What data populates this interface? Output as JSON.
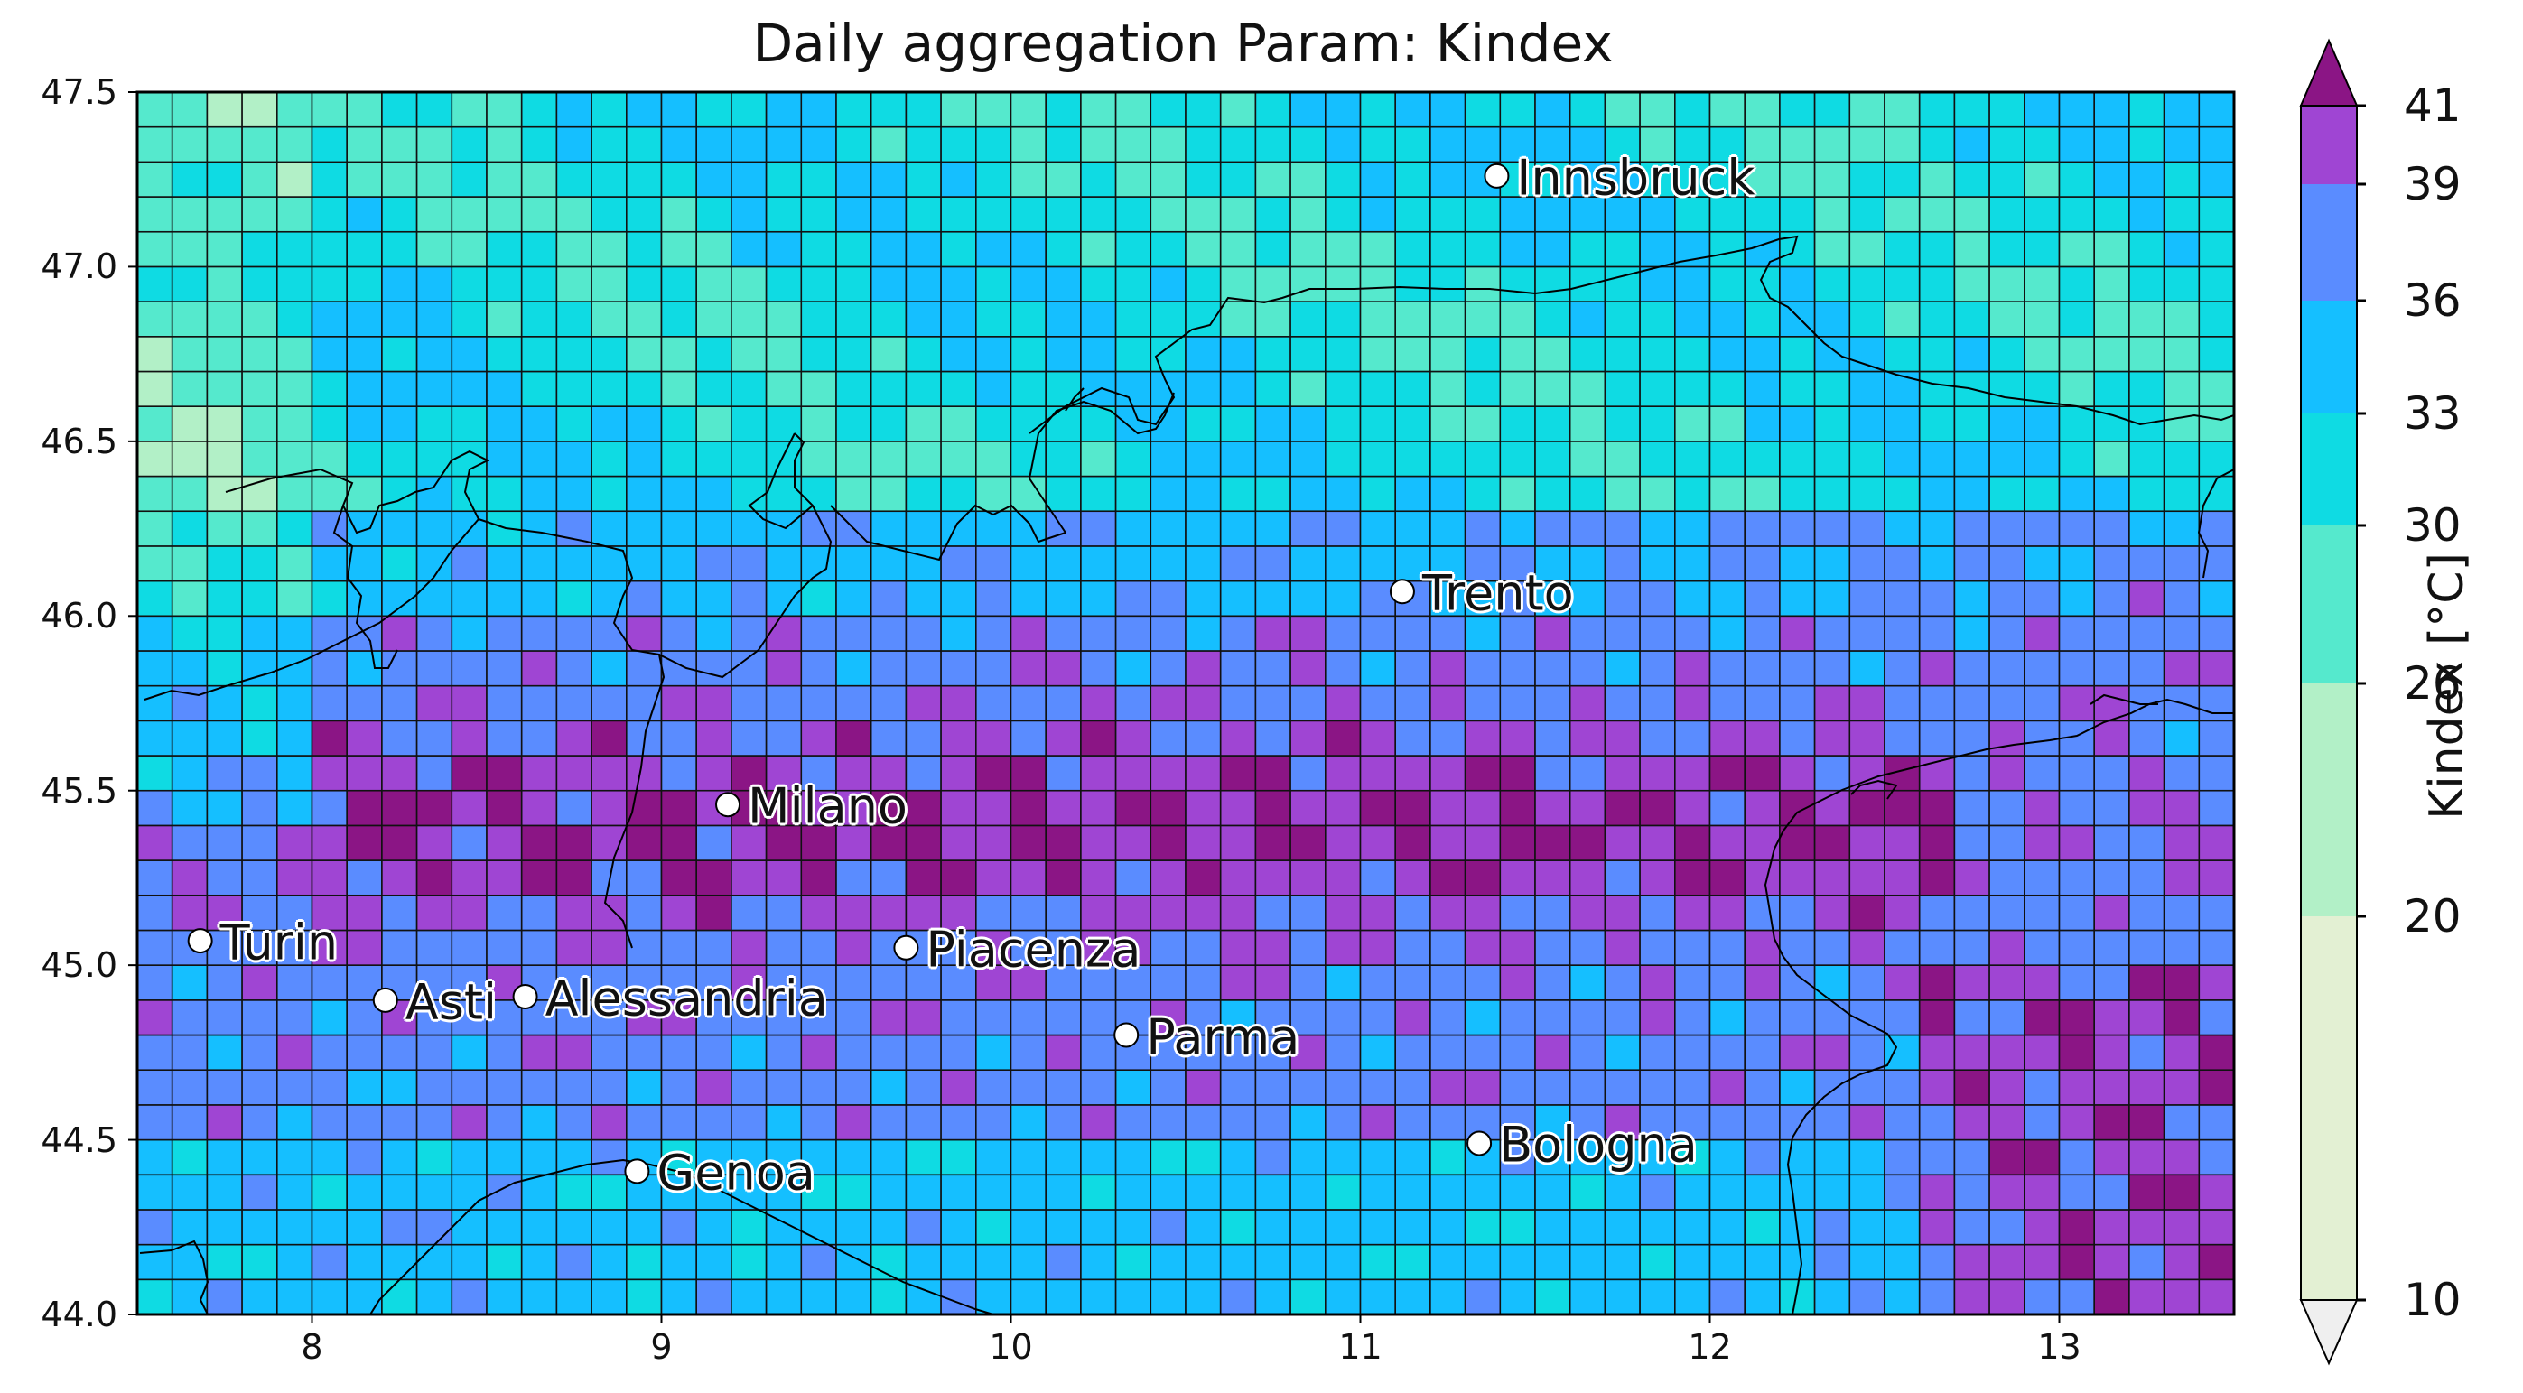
{
  "title": "Daily aggregation Param: Kindex",
  "map": {
    "lon_range": [
      7.5,
      13.5
    ],
    "lat_range": [
      44.0,
      47.5
    ],
    "grid": {
      "cols": 60,
      "rows": 35,
      "cell_deg": 0.1
    },
    "x_ticks": [
      "8",
      "9",
      "10",
      "11",
      "12",
      "13"
    ],
    "y_ticks": [
      "44.0",
      "44.5",
      "45.0",
      "45.5",
      "46.0",
      "46.5",
      "47.0",
      "47.5"
    ]
  },
  "colorbar": {
    "label": "Kindex [°C]",
    "ticks": [
      "10",
      "20",
      "26",
      "30",
      "33",
      "36",
      "39",
      "41"
    ],
    "levels": [
      10,
      20,
      26,
      30,
      33,
      36,
      39,
      41
    ],
    "colors": [
      "#e3f0d3",
      "#b2f0c7",
      "#55e9cd",
      "#0fdbe3",
      "#15bfff",
      "#5a8cff",
      "#9f45d3"
    ],
    "under_color": "#efefef",
    "over_color": "#8b1585"
  },
  "cities": [
    {
      "name": "Innsbruck",
      "lon": 11.39,
      "lat": 47.26
    },
    {
      "name": "Trento",
      "lon": 11.12,
      "lat": 46.07
    },
    {
      "name": "Milano",
      "lon": 9.19,
      "lat": 45.46
    },
    {
      "name": "Turin",
      "lon": 7.68,
      "lat": 45.07
    },
    {
      "name": "Piacenza",
      "lon": 9.7,
      "lat": 45.05
    },
    {
      "name": "Asti",
      "lon": 8.21,
      "lat": 44.9
    },
    {
      "name": "Alessandria",
      "lon": 8.61,
      "lat": 44.91
    },
    {
      "name": "Parma",
      "lon": 10.33,
      "lat": 44.8
    },
    {
      "name": "Bologna",
      "lon": 11.34,
      "lat": 44.49
    },
    {
      "name": "Genoa",
      "lon": 8.93,
      "lat": 44.41
    }
  ]
}
